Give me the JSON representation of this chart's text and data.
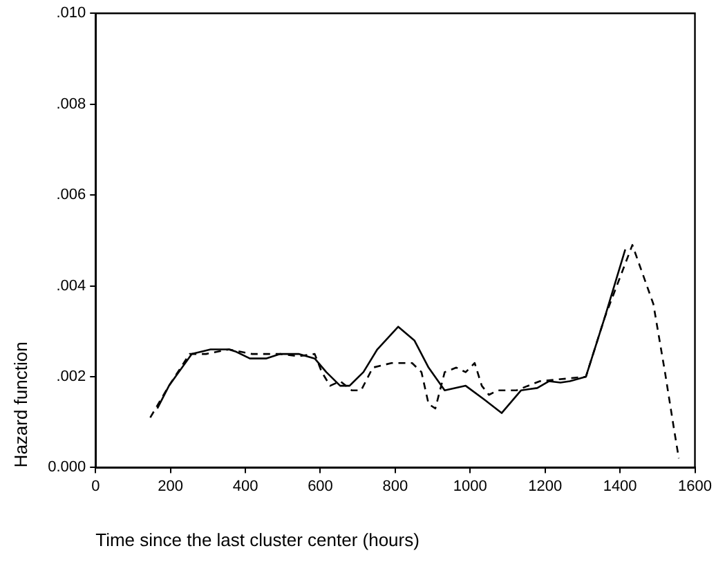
{
  "chart_data": {
    "type": "line",
    "xlabel": "Time since the last cluster center (hours)",
    "ylabel": "Hazard function",
    "xlim": [
      0,
      1600
    ],
    "xticks": [
      0,
      200,
      400,
      600,
      800,
      1000,
      1200,
      1400,
      1600
    ],
    "ylim": [
      0,
      0.01
    ],
    "yticks": [
      {
        "value": 0,
        "label": "0.000"
      },
      {
        "value": 0.002,
        "label": ".002"
      },
      {
        "value": 0.004,
        "label": ".004"
      },
      {
        "value": 0.006,
        "label": ".006"
      },
      {
        "value": 0.008,
        "label": ".008"
      },
      {
        "value": 0.01,
        "label": ".010"
      }
    ],
    "grid": false,
    "legend": false,
    "marker": "none",
    "series": [
      {
        "color": "#000000",
        "line_style": "solid",
        "x": [
          165,
          196,
          257,
          307,
          356,
          375,
          412,
          455,
          493,
          542,
          585,
          616,
          653,
          678,
          715,
          752,
          808,
          851,
          889,
          932,
          988,
          1037,
          1084,
          1136,
          1179,
          1210,
          1241,
          1266,
          1309,
          1359,
          1414
        ],
        "values": [
          0.0013,
          0.0018,
          0.0025,
          0.0026,
          0.0026,
          0.00255,
          0.0024,
          0.0024,
          0.0025,
          0.0025,
          0.0024,
          0.0021,
          0.0018,
          0.0018,
          0.0021,
          0.0026,
          0.0031,
          0.0028,
          0.0022,
          0.0017,
          0.0018,
          0.0015,
          0.0012,
          0.0017,
          0.00175,
          0.0019,
          0.00187,
          0.0019,
          0.002,
          0.0033,
          0.0048
        ]
      },
      {
        "color": "#000000",
        "line_style": "dashed",
        "x": [
          146,
          196,
          251,
          295,
          356,
          418,
          493,
          542,
          585,
          604,
          626,
          653,
          684,
          709,
          740,
          790,
          845,
          870,
          889,
          907,
          932,
          963,
          988,
          1012,
          1031,
          1050,
          1074,
          1124,
          1186,
          1309,
          1359,
          1433,
          1489,
          1520,
          1545,
          1557
        ],
        "values": [
          0.0011,
          0.0018,
          0.0025,
          0.0025,
          0.0026,
          0.0025,
          0.0025,
          0.00245,
          0.0025,
          0.0021,
          0.0018,
          0.0019,
          0.0017,
          0.0017,
          0.0022,
          0.0023,
          0.0023,
          0.0021,
          0.0014,
          0.0013,
          0.0021,
          0.0022,
          0.0021,
          0.0023,
          0.0018,
          0.0016,
          0.0017,
          0.0017,
          0.0019,
          0.002,
          0.0033,
          0.0049,
          0.0036,
          0.0021,
          0.0008,
          0.0002
        ]
      }
    ]
  }
}
